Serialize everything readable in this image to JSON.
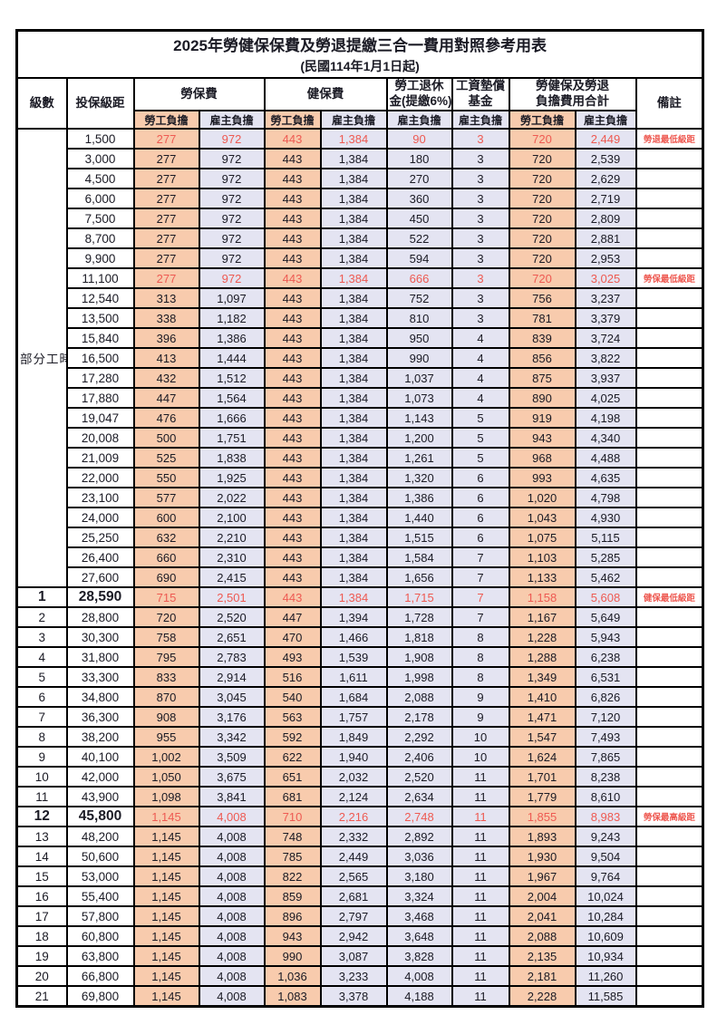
{
  "page": {
    "title": "2025年勞健保保費及勞退提繳三合一費用對照參考用表",
    "subtitle": "(民國114年1月1日起)"
  },
  "columns": {
    "level": "級數",
    "bracket": "投保級距",
    "labor": "勞保費",
    "health": "健保費",
    "pension_line1": "勞工退休",
    "pension_line2": "金(提繳6%)",
    "wage_fund_line1": "工資墊償",
    "wage_fund_line2": "基金",
    "total_line1": "勞健保及勞退",
    "total_line2": "負擔費用合計",
    "remark": "備註",
    "employee": "勞工負擔",
    "employer": "雇主負擔"
  },
  "part_time_label": "部分工時",
  "colors": {
    "employee_bg": "#F8CBAD",
    "employer_bg": "#E4E4F2",
    "highlight_text": "#EE5A52",
    "border": "#000000"
  },
  "rows": [
    {
      "level": "",
      "bracket": "1,500",
      "values": [
        "277",
        "972",
        "443",
        "1,384",
        "90",
        "3",
        "720",
        "2,449"
      ],
      "remark": "勞退最低級距",
      "highlight": true,
      "big": false
    },
    {
      "level": "",
      "bracket": "3,000",
      "values": [
        "277",
        "972",
        "443",
        "1,384",
        "180",
        "3",
        "720",
        "2,539"
      ],
      "remark": "",
      "highlight": false,
      "big": false
    },
    {
      "level": "",
      "bracket": "4,500",
      "values": [
        "277",
        "972",
        "443",
        "1,384",
        "270",
        "3",
        "720",
        "2,629"
      ],
      "remark": "",
      "highlight": false,
      "big": false
    },
    {
      "level": "",
      "bracket": "6,000",
      "values": [
        "277",
        "972",
        "443",
        "1,384",
        "360",
        "3",
        "720",
        "2,719"
      ],
      "remark": "",
      "highlight": false,
      "big": false
    },
    {
      "level": "",
      "bracket": "7,500",
      "values": [
        "277",
        "972",
        "443",
        "1,384",
        "450",
        "3",
        "720",
        "2,809"
      ],
      "remark": "",
      "highlight": false,
      "big": false
    },
    {
      "level": "",
      "bracket": "8,700",
      "values": [
        "277",
        "972",
        "443",
        "1,384",
        "522",
        "3",
        "720",
        "2,881"
      ],
      "remark": "",
      "highlight": false,
      "big": false
    },
    {
      "level": "",
      "bracket": "9,900",
      "values": [
        "277",
        "972",
        "443",
        "1,384",
        "594",
        "3",
        "720",
        "2,953"
      ],
      "remark": "",
      "highlight": false,
      "big": false
    },
    {
      "level": "",
      "bracket": "11,100",
      "values": [
        "277",
        "972",
        "443",
        "1,384",
        "666",
        "3",
        "720",
        "3,025"
      ],
      "remark": "勞保最低級距",
      "highlight": true,
      "big": false
    },
    {
      "level": "",
      "bracket": "12,540",
      "values": [
        "313",
        "1,097",
        "443",
        "1,384",
        "752",
        "3",
        "756",
        "3,237"
      ],
      "remark": "",
      "highlight": false,
      "big": false
    },
    {
      "level": "",
      "bracket": "13,500",
      "values": [
        "338",
        "1,182",
        "443",
        "1,384",
        "810",
        "3",
        "781",
        "3,379"
      ],
      "remark": "",
      "highlight": false,
      "big": false
    },
    {
      "level": "",
      "bracket": "15,840",
      "values": [
        "396",
        "1,386",
        "443",
        "1,384",
        "950",
        "4",
        "839",
        "3,724"
      ],
      "remark": "",
      "highlight": false,
      "big": false
    },
    {
      "level": "",
      "bracket": "16,500",
      "values": [
        "413",
        "1,444",
        "443",
        "1,384",
        "990",
        "4",
        "856",
        "3,822"
      ],
      "remark": "",
      "highlight": false,
      "big": false
    },
    {
      "level": "",
      "bracket": "17,280",
      "values": [
        "432",
        "1,512",
        "443",
        "1,384",
        "1,037",
        "4",
        "875",
        "3,937"
      ],
      "remark": "",
      "highlight": false,
      "big": false
    },
    {
      "level": "",
      "bracket": "17,880",
      "values": [
        "447",
        "1,564",
        "443",
        "1,384",
        "1,073",
        "4",
        "890",
        "4,025"
      ],
      "remark": "",
      "highlight": false,
      "big": false
    },
    {
      "level": "",
      "bracket": "19,047",
      "values": [
        "476",
        "1,666",
        "443",
        "1,384",
        "1,143",
        "5",
        "919",
        "4,198"
      ],
      "remark": "",
      "highlight": false,
      "big": false
    },
    {
      "level": "",
      "bracket": "20,008",
      "values": [
        "500",
        "1,751",
        "443",
        "1,384",
        "1,200",
        "5",
        "943",
        "4,340"
      ],
      "remark": "",
      "highlight": false,
      "big": false
    },
    {
      "level": "",
      "bracket": "21,009",
      "values": [
        "525",
        "1,838",
        "443",
        "1,384",
        "1,261",
        "5",
        "968",
        "4,488"
      ],
      "remark": "",
      "highlight": false,
      "big": false
    },
    {
      "level": "",
      "bracket": "22,000",
      "values": [
        "550",
        "1,925",
        "443",
        "1,384",
        "1,320",
        "6",
        "993",
        "4,635"
      ],
      "remark": "",
      "highlight": false,
      "big": false
    },
    {
      "level": "",
      "bracket": "23,100",
      "values": [
        "577",
        "2,022",
        "443",
        "1,384",
        "1,386",
        "6",
        "1,020",
        "4,798"
      ],
      "remark": "",
      "highlight": false,
      "big": false
    },
    {
      "level": "",
      "bracket": "24,000",
      "values": [
        "600",
        "2,100",
        "443",
        "1,384",
        "1,440",
        "6",
        "1,043",
        "4,930"
      ],
      "remark": "",
      "highlight": false,
      "big": false
    },
    {
      "level": "",
      "bracket": "25,250",
      "values": [
        "632",
        "2,210",
        "443",
        "1,384",
        "1,515",
        "6",
        "1,075",
        "5,115"
      ],
      "remark": "",
      "highlight": false,
      "big": false
    },
    {
      "level": "",
      "bracket": "26,400",
      "values": [
        "660",
        "2,310",
        "443",
        "1,384",
        "1,584",
        "7",
        "1,103",
        "5,285"
      ],
      "remark": "",
      "highlight": false,
      "big": false
    },
    {
      "level": "",
      "bracket": "27,600",
      "values": [
        "690",
        "2,415",
        "443",
        "1,384",
        "1,656",
        "7",
        "1,133",
        "5,462"
      ],
      "remark": "",
      "highlight": false,
      "big": false
    },
    {
      "level": "1",
      "bracket": "28,590",
      "values": [
        "715",
        "2,501",
        "443",
        "1,384",
        "1,715",
        "7",
        "1,158",
        "5,608"
      ],
      "remark": "健保最低級距",
      "highlight": true,
      "big": true
    },
    {
      "level": "2",
      "bracket": "28,800",
      "values": [
        "720",
        "2,520",
        "447",
        "1,394",
        "1,728",
        "7",
        "1,167",
        "5,649"
      ],
      "remark": "",
      "highlight": false,
      "big": false
    },
    {
      "level": "3",
      "bracket": "30,300",
      "values": [
        "758",
        "2,651",
        "470",
        "1,466",
        "1,818",
        "8",
        "1,228",
        "5,943"
      ],
      "remark": "",
      "highlight": false,
      "big": false
    },
    {
      "level": "4",
      "bracket": "31,800",
      "values": [
        "795",
        "2,783",
        "493",
        "1,539",
        "1,908",
        "8",
        "1,288",
        "6,238"
      ],
      "remark": "",
      "highlight": false,
      "big": false
    },
    {
      "level": "5",
      "bracket": "33,300",
      "values": [
        "833",
        "2,914",
        "516",
        "1,611",
        "1,998",
        "8",
        "1,349",
        "6,531"
      ],
      "remark": "",
      "highlight": false,
      "big": false
    },
    {
      "level": "6",
      "bracket": "34,800",
      "values": [
        "870",
        "3,045",
        "540",
        "1,684",
        "2,088",
        "9",
        "1,410",
        "6,826"
      ],
      "remark": "",
      "highlight": false,
      "big": false
    },
    {
      "level": "7",
      "bracket": "36,300",
      "values": [
        "908",
        "3,176",
        "563",
        "1,757",
        "2,178",
        "9",
        "1,471",
        "7,120"
      ],
      "remark": "",
      "highlight": false,
      "big": false
    },
    {
      "level": "8",
      "bracket": "38,200",
      "values": [
        "955",
        "3,342",
        "592",
        "1,849",
        "2,292",
        "10",
        "1,547",
        "7,493"
      ],
      "remark": "",
      "highlight": false,
      "big": false
    },
    {
      "level": "9",
      "bracket": "40,100",
      "values": [
        "1,002",
        "3,509",
        "622",
        "1,940",
        "2,406",
        "10",
        "1,624",
        "7,865"
      ],
      "remark": "",
      "highlight": false,
      "big": false
    },
    {
      "level": "10",
      "bracket": "42,000",
      "values": [
        "1,050",
        "3,675",
        "651",
        "2,032",
        "2,520",
        "11",
        "1,701",
        "8,238"
      ],
      "remark": "",
      "highlight": false,
      "big": false
    },
    {
      "level": "11",
      "bracket": "43,900",
      "values": [
        "1,098",
        "3,841",
        "681",
        "2,124",
        "2,634",
        "11",
        "1,779",
        "8,610"
      ],
      "remark": "",
      "highlight": false,
      "big": false
    },
    {
      "level": "12",
      "bracket": "45,800",
      "values": [
        "1,145",
        "4,008",
        "710",
        "2,216",
        "2,748",
        "11",
        "1,855",
        "8,983"
      ],
      "remark": "勞保最高級距",
      "highlight": true,
      "big": true
    },
    {
      "level": "13",
      "bracket": "48,200",
      "values": [
        "1,145",
        "4,008",
        "748",
        "2,332",
        "2,892",
        "11",
        "1,893",
        "9,243"
      ],
      "remark": "",
      "highlight": false,
      "big": false
    },
    {
      "level": "14",
      "bracket": "50,600",
      "values": [
        "1,145",
        "4,008",
        "785",
        "2,449",
        "3,036",
        "11",
        "1,930",
        "9,504"
      ],
      "remark": "",
      "highlight": false,
      "big": false
    },
    {
      "level": "15",
      "bracket": "53,000",
      "values": [
        "1,145",
        "4,008",
        "822",
        "2,565",
        "3,180",
        "11",
        "1,967",
        "9,764"
      ],
      "remark": "",
      "highlight": false,
      "big": false
    },
    {
      "level": "16",
      "bracket": "55,400",
      "values": [
        "1,145",
        "4,008",
        "859",
        "2,681",
        "3,324",
        "11",
        "2,004",
        "10,024"
      ],
      "remark": "",
      "highlight": false,
      "big": false
    },
    {
      "level": "17",
      "bracket": "57,800",
      "values": [
        "1,145",
        "4,008",
        "896",
        "2,797",
        "3,468",
        "11",
        "2,041",
        "10,284"
      ],
      "remark": "",
      "highlight": false,
      "big": false
    },
    {
      "level": "18",
      "bracket": "60,800",
      "values": [
        "1,145",
        "4,008",
        "943",
        "2,942",
        "3,648",
        "11",
        "2,088",
        "10,609"
      ],
      "remark": "",
      "highlight": false,
      "big": false
    },
    {
      "level": "19",
      "bracket": "63,800",
      "values": [
        "1,145",
        "4,008",
        "990",
        "3,087",
        "3,828",
        "11",
        "2,135",
        "10,934"
      ],
      "remark": "",
      "highlight": false,
      "big": false
    },
    {
      "level": "20",
      "bracket": "66,800",
      "values": [
        "1,145",
        "4,008",
        "1,036",
        "3,233",
        "4,008",
        "11",
        "2,181",
        "11,260"
      ],
      "remark": "",
      "highlight": false,
      "big": false
    },
    {
      "level": "21",
      "bracket": "69,800",
      "values": [
        "1,145",
        "4,008",
        "1,083",
        "3,378",
        "4,188",
        "11",
        "2,228",
        "11,585"
      ],
      "remark": "",
      "highlight": false,
      "big": false
    }
  ]
}
